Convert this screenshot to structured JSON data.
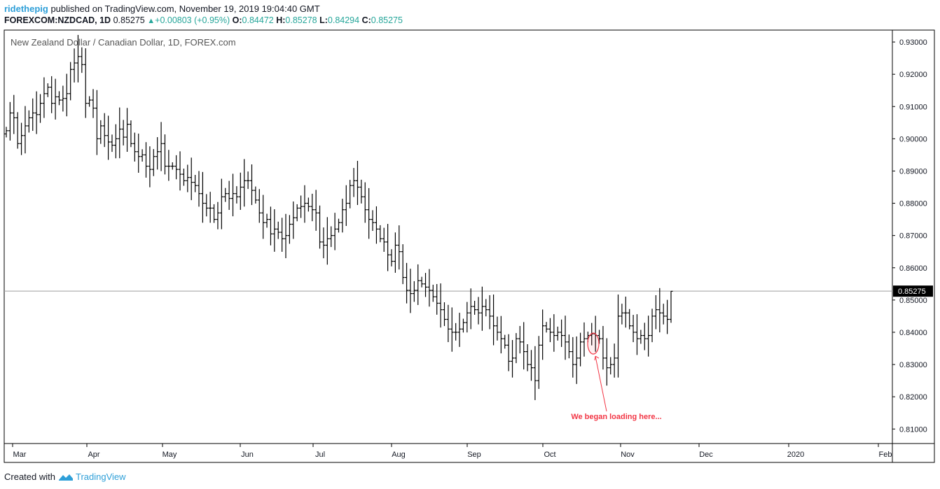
{
  "header": {
    "author": "ridethepig",
    "published_text": " published on TradingView.com, November 19, 2019 19:04:40 GMT",
    "symbol": "FOREXCOM:NZDCAD, 1D",
    "last": "0.85275",
    "change": "+0.00803 (+0.95%)",
    "o_label": "O:",
    "o_value": "0.84472",
    "h_label": "H:",
    "h_value": "0.85278",
    "l_label": "L:",
    "l_value": "0.84294",
    "c_label": "C:",
    "c_value": "0.85275"
  },
  "footer": {
    "created_with": "Created with",
    "brand": "TradingView"
  },
  "colors": {
    "bars": "#000000",
    "accent": "#2e9fd8",
    "up": "#26a69a",
    "annotation": "#f23645"
  },
  "chart_data": {
    "type": "ohlc-bar",
    "title": "New Zealand Dollar / Canadian Dollar, 1D, FOREX.com",
    "price_ticks": [
      "0.93000",
      "0.92000",
      "0.91000",
      "0.90000",
      "0.89000",
      "0.88000",
      "0.87000",
      "0.86000",
      "0.85000",
      "0.84000",
      "0.83000",
      "0.82000",
      "0.81000"
    ],
    "x_ticks": [
      "Mar",
      "Apr",
      "May",
      "Jun",
      "Jul",
      "Aug",
      "Sep",
      "Oct",
      "Nov",
      "Dec",
      "2020",
      "Feb"
    ],
    "ylim": [
      0.8055,
      0.9337
    ],
    "current_price": "0.85275",
    "annotation": {
      "text": "We began loading here...",
      "date": "2019-10-18",
      "price": 0.8365
    },
    "closes": [
      0.9025,
      0.908,
      0.9065,
      0.8985,
      0.901,
      0.904,
      0.9065,
      0.908,
      0.9075,
      0.911,
      0.914,
      0.916,
      0.911,
      0.913,
      0.912,
      0.9125,
      0.914,
      0.9215,
      0.9235,
      0.9255,
      0.923,
      0.911,
      0.912,
      0.9095,
      0.9,
      0.904,
      0.901,
      0.899,
      0.898,
      0.9,
      0.903,
      0.9005,
      0.9045,
      0.8985,
      0.896,
      0.8945,
      0.895,
      0.8915,
      0.8905,
      0.8945,
      0.896,
      0.8985,
      0.8915,
      0.8915,
      0.8915,
      0.8905,
      0.889,
      0.887,
      0.888,
      0.8865,
      0.8855,
      0.883,
      0.88,
      0.8785,
      0.8785,
      0.875,
      0.877,
      0.882,
      0.883,
      0.8815,
      0.883,
      0.882,
      0.885,
      0.887,
      0.887,
      0.884,
      0.881,
      0.877,
      0.874,
      0.875,
      0.8705,
      0.872,
      0.871,
      0.869,
      0.87,
      0.8735,
      0.8755,
      0.8785,
      0.879,
      0.88,
      0.879,
      0.878,
      0.877,
      0.868,
      0.867,
      0.869,
      0.87,
      0.872,
      0.874,
      0.878,
      0.88,
      0.8855,
      0.887,
      0.885,
      0.882,
      0.878,
      0.875,
      0.874,
      0.872,
      0.869,
      0.868,
      0.864,
      0.862,
      0.867,
      0.865,
      0.857,
      0.853,
      0.852,
      0.853,
      0.856,
      0.855,
      0.854,
      0.853,
      0.851,
      0.849,
      0.847,
      0.844,
      0.841,
      0.84,
      0.84,
      0.841,
      0.843,
      0.846,
      0.848,
      0.847,
      0.846,
      0.848,
      0.847,
      0.845,
      0.842,
      0.84,
      0.838,
      0.836,
      0.831,
      0.832,
      0.838,
      0.837,
      0.834,
      0.83,
      0.829,
      0.825,
      0.836,
      0.842,
      0.841,
      0.84,
      0.839,
      0.84,
      0.839,
      0.837,
      0.834,
      0.83,
      0.832,
      0.837,
      0.838,
      0.839,
      0.8395,
      0.839,
      0.838,
      0.832,
      0.829,
      0.83,
      0.832,
      0.845,
      0.846,
      0.846,
      0.842,
      0.84,
      0.838,
      0.839,
      0.838,
      0.839,
      0.845,
      0.847,
      0.846,
      0.845,
      0.844,
      0.8527
    ]
  }
}
